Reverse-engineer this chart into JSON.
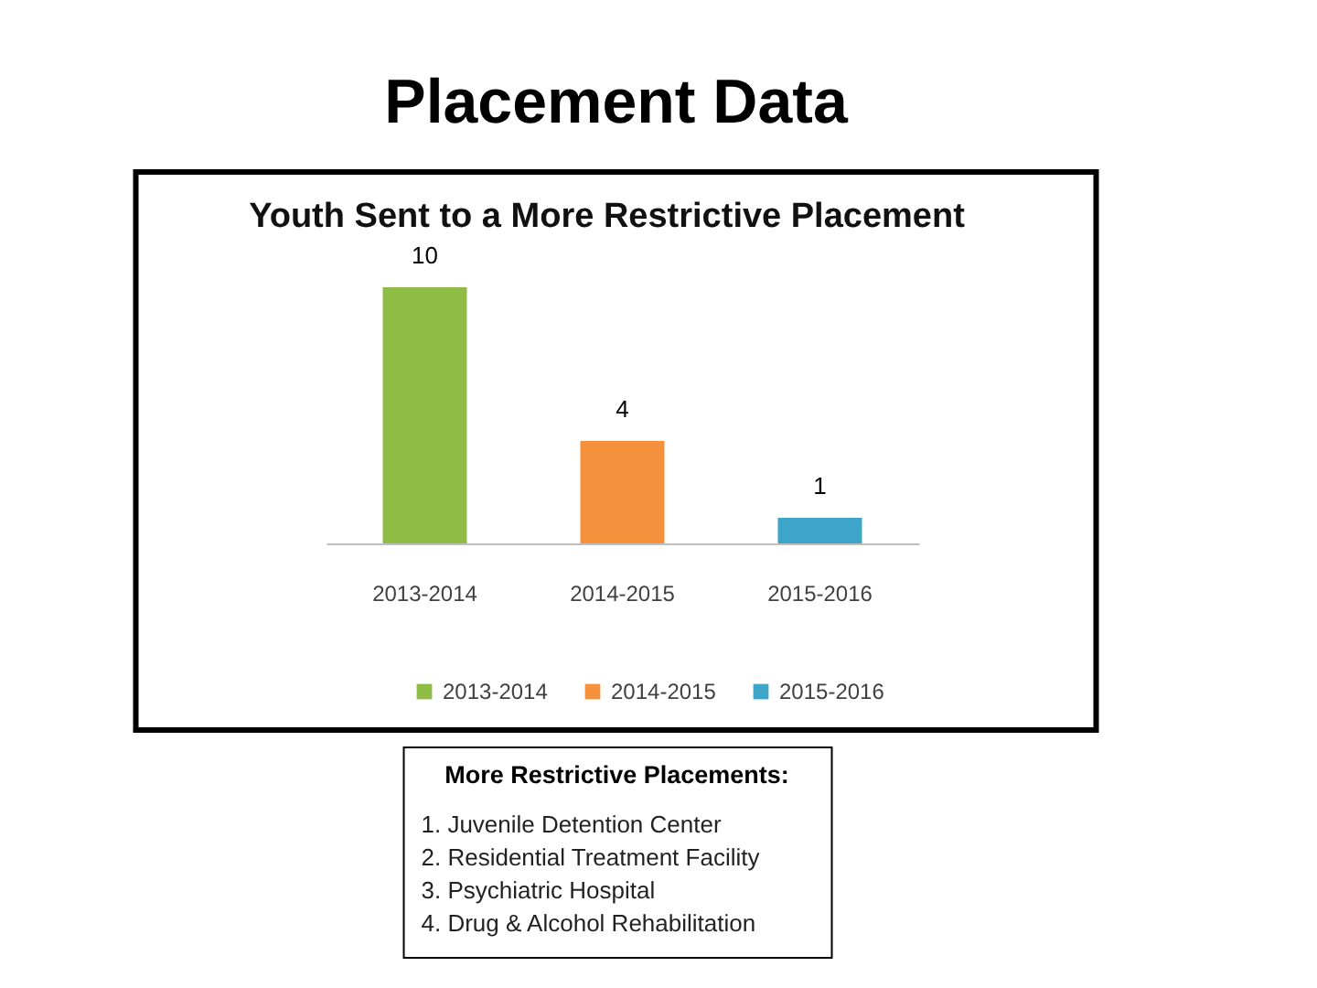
{
  "chart_data": [
    {
      "type": "bar",
      "title": "Placement Data",
      "subtitle": "Youth Sent to a More Restrictive Placement",
      "categories": [
        "2013-2014",
        "2014-2015",
        "2015-2016"
      ],
      "series": [
        {
          "name": "2013-2014",
          "color": "#8fbc45",
          "values": [
            10,
            null,
            null
          ]
        },
        {
          "name": "2014-2015",
          "color": "#f5913c",
          "values": [
            null,
            4,
            null
          ]
        },
        {
          "name": "2015-2016",
          "color": "#3ca5c8",
          "values": [
            null,
            null,
            1
          ]
        }
      ],
      "data_labels": true,
      "legend": "bottom"
    },
    {
      "type": "other",
      "title": "More Restrictive Placements:",
      "annotations": [
        "1. Juvenile Detention Center",
        "2. Residential Treatment Facility",
        "3. Psychiatric Hospital",
        "4. Drug & Alcohol Rehabilitation"
      ]
    }
  ]
}
